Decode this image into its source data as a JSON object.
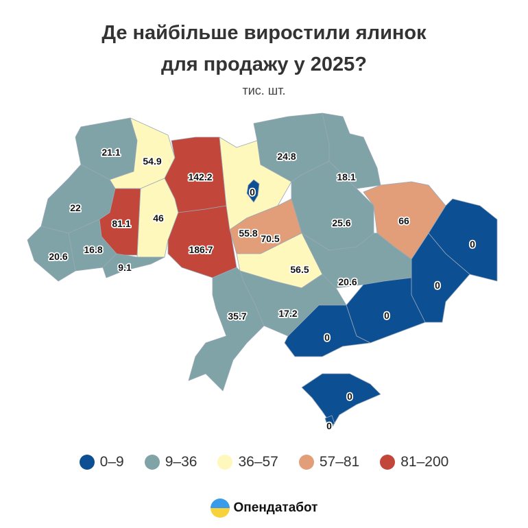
{
  "title_line1": "Де найбільше виростили ялинок",
  "title_line2": "для продажу у 2025?",
  "subtitle": "тис. шт.",
  "colors": {
    "c0_9": "#0d4f93",
    "c9_36": "#7fa3a6",
    "c36_57": "#fff8bd",
    "c57_81": "#e19e78",
    "c81_200": "#c3463a"
  },
  "legend": [
    {
      "label": "0–9",
      "color": "#0d4f93"
    },
    {
      "label": "9–36",
      "color": "#7fa3a6"
    },
    {
      "label": "36–57",
      "color": "#fff8bd"
    },
    {
      "label": "57–81",
      "color": "#e19e78"
    },
    {
      "label": "81–200",
      "color": "#c3463a"
    }
  ],
  "regions": [
    {
      "value": "21.1"
    },
    {
      "value": "54.9"
    },
    {
      "value": "22"
    },
    {
      "value": "81.1"
    },
    {
      "value": "46"
    },
    {
      "value": "142.2"
    },
    {
      "value": "186.7"
    },
    {
      "value": "20.6"
    },
    {
      "value": "16.8"
    },
    {
      "value": "9.1"
    },
    {
      "value": "55.8"
    },
    {
      "value": "0"
    },
    {
      "value": "24.8"
    },
    {
      "value": "18.1"
    },
    {
      "value": "25.6"
    },
    {
      "value": "70.5"
    },
    {
      "value": "56.5"
    },
    {
      "value": "66"
    },
    {
      "value": "0"
    },
    {
      "value": "0"
    },
    {
      "value": "20.6"
    },
    {
      "value": "0"
    },
    {
      "value": "17.2"
    },
    {
      "value": "0"
    },
    {
      "value": "35.7"
    },
    {
      "value": "0"
    },
    {
      "value": "0"
    }
  ],
  "brand": "Опендатабот"
}
